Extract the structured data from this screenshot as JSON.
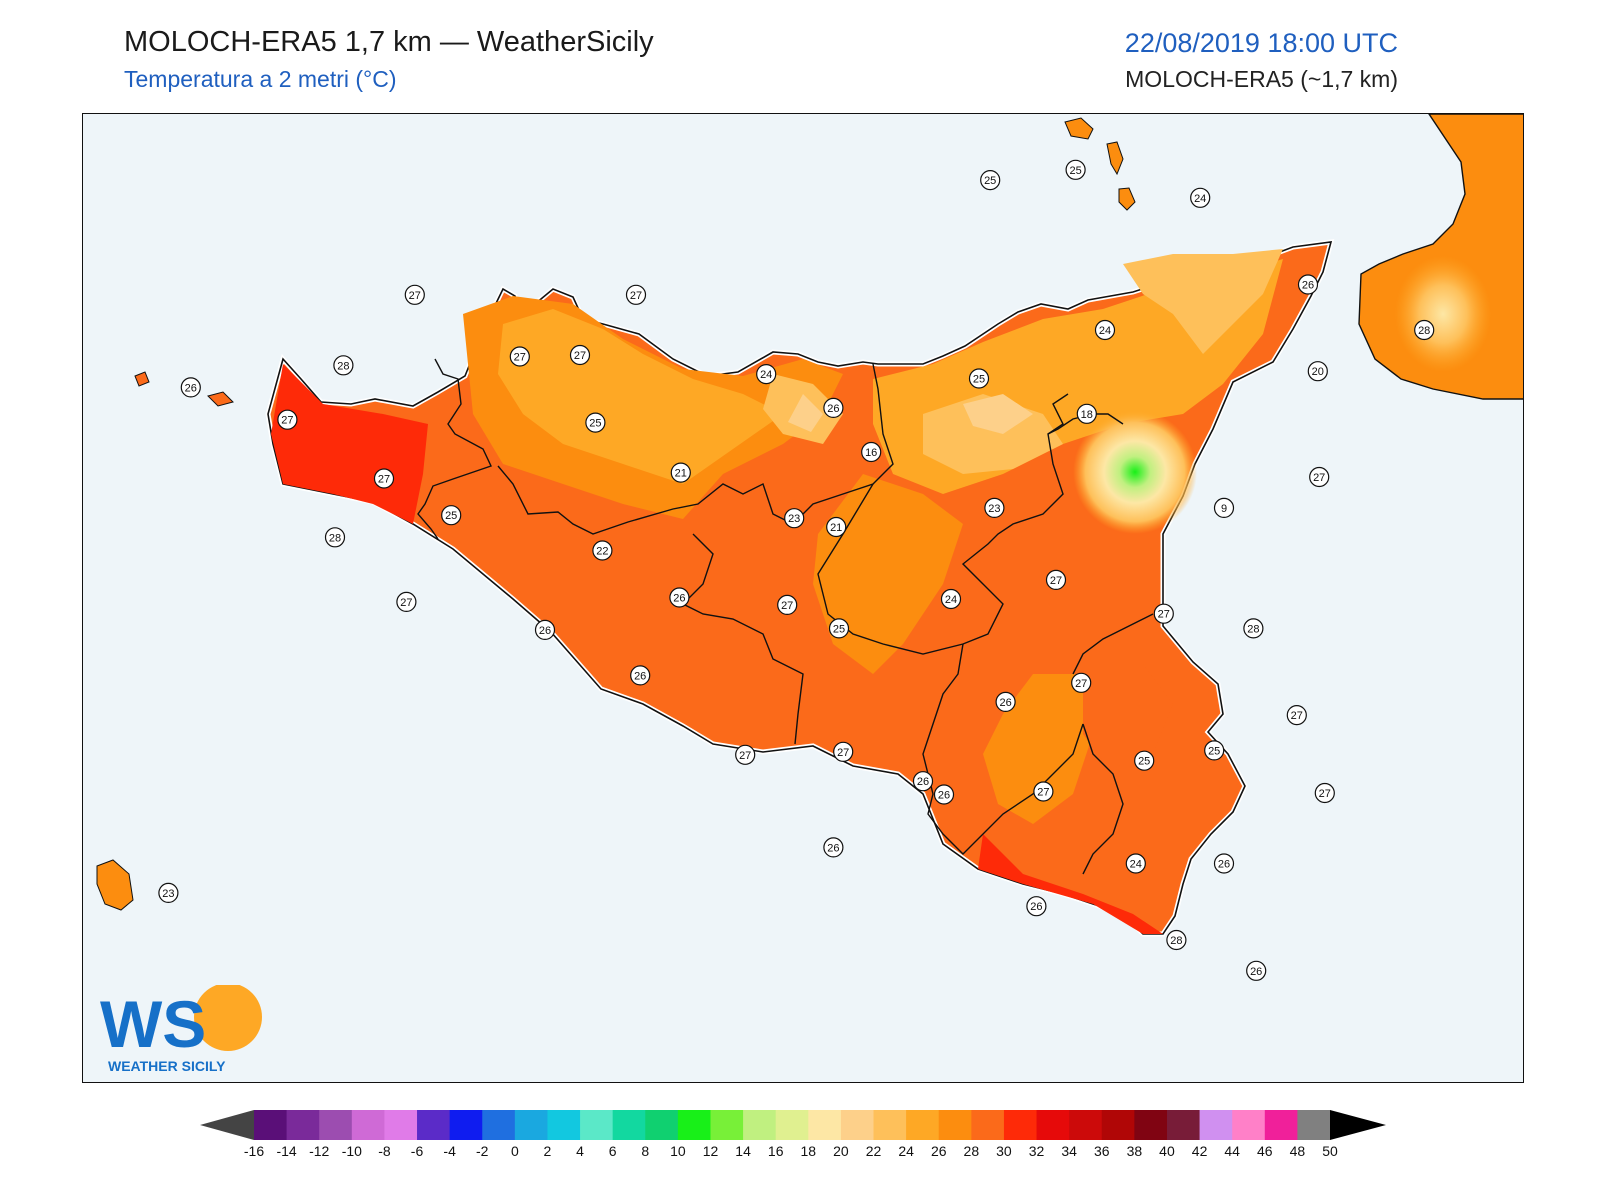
{
  "header": {
    "title": "MOLOCH-ERA5 1,7 km — WeatherSicily",
    "subtitle": "Temperatura a 2 metri (°C)",
    "valid_time": "22/08/2019 18:00 UTC",
    "model": "MOLOCH-ERA5 (~1,7 km)"
  },
  "logo": {
    "letters": "WS",
    "caption": "WEATHER SICILY"
  },
  "colorbar": {
    "ticks": [
      "-16",
      "-14",
      "-12",
      "-10",
      "-8",
      "-6",
      "-4",
      "-2",
      "0",
      "2",
      "4",
      "6",
      "8",
      "10",
      "12",
      "14",
      "16",
      "18",
      "20",
      "22",
      "24",
      "26",
      "28",
      "30",
      "32",
      "34",
      "36",
      "38",
      "40",
      "42",
      "44",
      "46",
      "48",
      "50"
    ],
    "colors": [
      "#3b0a45",
      "#5a0f78",
      "#7a2a9a",
      "#9c4db0",
      "#cf6ad6",
      "#e07be8",
      "#5b2bc8",
      "#0f1cf0",
      "#1f6fe0",
      "#1aa8e0",
      "#12c8e0",
      "#5be8c8",
      "#12d8a0",
      "#10d070",
      "#18f018",
      "#78f038",
      "#c0f080",
      "#e0f090",
      "#fde7a5",
      "#fdd08a",
      "#fec05a",
      "#fea825",
      "#fc8d0f",
      "#fb6a1a",
      "#fe2a08",
      "#e60a0a",
      "#cc0a0a",
      "#b00606",
      "#800412",
      "#781c38",
      "#d090f0",
      "#ff80c8",
      "#f0209a",
      "#808080",
      "#404040"
    ],
    "low_color": "#444444",
    "high_color": "#000000"
  },
  "stations": [
    {
      "label": "25",
      "lon": 14.08,
      "lat": 39.75
    },
    {
      "label": "25",
      "lon": 14.69,
      "lat": 39.82
    },
    {
      "label": "24",
      "lon": 15.58,
      "lat": 39.63
    },
    {
      "label": "26",
      "lon": 16.35,
      "lat": 39.04
    },
    {
      "label": "28",
      "lon": 17.18,
      "lat": 38.73
    },
    {
      "label": "24",
      "lon": 14.9,
      "lat": 38.73
    },
    {
      "label": "20",
      "lon": 16.42,
      "lat": 38.45
    },
    {
      "label": "25",
      "lon": 14.0,
      "lat": 38.4
    },
    {
      "label": "18",
      "lon": 14.77,
      "lat": 38.16
    },
    {
      "label": "27",
      "lon": 16.43,
      "lat": 37.73
    },
    {
      "label": "9",
      "lon": 15.75,
      "lat": 37.52
    },
    {
      "label": "23",
      "lon": 14.11,
      "lat": 37.52
    },
    {
      "label": "27",
      "lon": 14.55,
      "lat": 37.03
    },
    {
      "label": "24",
      "lon": 13.8,
      "lat": 36.9
    },
    {
      "label": "27",
      "lon": 15.32,
      "lat": 36.8
    },
    {
      "label": "28",
      "lon": 15.96,
      "lat": 36.7
    },
    {
      "label": "27",
      "lon": 14.73,
      "lat": 36.33
    },
    {
      "label": "26",
      "lon": 14.19,
      "lat": 36.2
    },
    {
      "label": "27",
      "lon": 16.27,
      "lat": 36.11
    },
    {
      "label": "25",
      "lon": 15.68,
      "lat": 35.87
    },
    {
      "label": "25",
      "lon": 15.18,
      "lat": 35.8
    },
    {
      "label": "27",
      "lon": 16.47,
      "lat": 35.58
    },
    {
      "label": "27",
      "lon": 14.46,
      "lat": 35.59
    },
    {
      "label": "26",
      "lon": 13.75,
      "lat": 35.57
    },
    {
      "label": "24",
      "lon": 15.12,
      "lat": 35.1
    },
    {
      "label": "26",
      "lon": 15.75,
      "lat": 35.1
    },
    {
      "label": "26",
      "lon": 14.41,
      "lat": 34.81
    },
    {
      "label": "28",
      "lon": 15.41,
      "lat": 34.58
    },
    {
      "label": "26",
      "lon": 15.98,
      "lat": 34.37
    },
    {
      "label": "23",
      "lon": 8.21,
      "lat": 34.9
    },
    {
      "label": "27",
      "lon": 9.97,
      "lat": 38.97
    },
    {
      "label": "28",
      "lon": 9.46,
      "lat": 38.49
    },
    {
      "label": "26",
      "lon": 8.37,
      "lat": 38.34
    },
    {
      "label": "27",
      "lon": 9.06,
      "lat": 38.12
    },
    {
      "label": "27",
      "lon": 10.72,
      "lat": 38.55
    },
    {
      "label": "27",
      "lon": 11.55,
      "lat": 38.97
    },
    {
      "label": "27",
      "lon": 11.15,
      "lat": 38.56
    },
    {
      "label": "24",
      "lon": 12.48,
      "lat": 38.43
    },
    {
      "label": "26",
      "lon": 12.96,
      "lat": 38.2
    },
    {
      "label": "25",
      "lon": 11.26,
      "lat": 38.1
    },
    {
      "label": "21",
      "lon": 11.87,
      "lat": 37.76
    },
    {
      "label": "16",
      "lon": 13.23,
      "lat": 37.9
    },
    {
      "label": "27",
      "lon": 9.75,
      "lat": 37.72
    },
    {
      "label": "25",
      "lon": 10.23,
      "lat": 37.47
    },
    {
      "label": "28",
      "lon": 9.4,
      "lat": 37.32
    },
    {
      "label": "22",
      "lon": 11.31,
      "lat": 37.23
    },
    {
      "label": "23",
      "lon": 12.68,
      "lat": 37.45
    },
    {
      "label": "21",
      "lon": 12.98,
      "lat": 37.39
    },
    {
      "label": "27",
      "lon": 9.91,
      "lat": 36.88
    },
    {
      "label": "26",
      "lon": 10.9,
      "lat": 36.69
    },
    {
      "label": "26",
      "lon": 11.86,
      "lat": 36.91
    },
    {
      "label": "27",
      "lon": 12.63,
      "lat": 36.86
    },
    {
      "label": "25",
      "lon": 13.0,
      "lat": 36.7
    },
    {
      "label": "26",
      "lon": 11.58,
      "lat": 36.38
    },
    {
      "label": "27",
      "lon": 12.33,
      "lat": 35.84
    },
    {
      "label": "27",
      "lon": 13.03,
      "lat": 35.86
    },
    {
      "label": "26",
      "lon": 13.6,
      "lat": 35.66
    },
    {
      "label": "26",
      "lon": 12.96,
      "lat": 35.21
    }
  ]
}
